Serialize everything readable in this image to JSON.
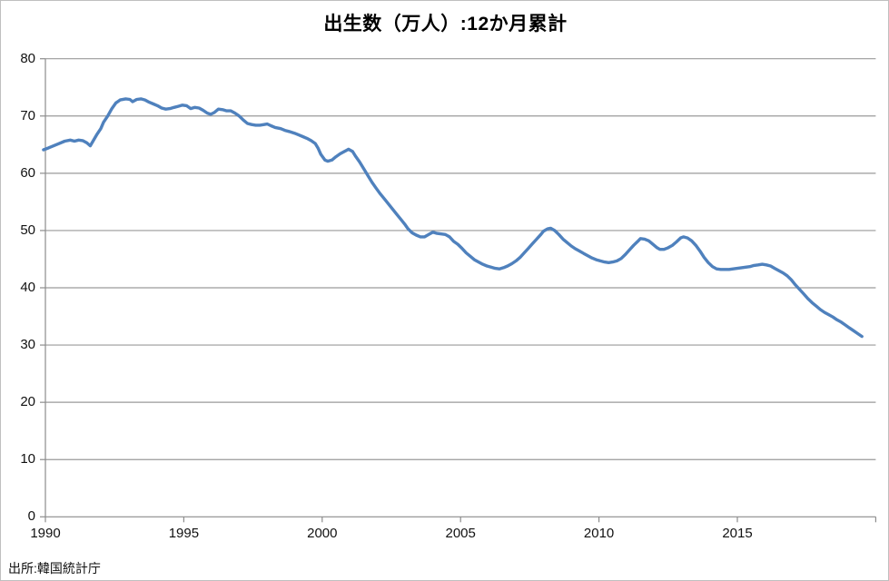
{
  "chart_data": {
    "type": "line",
    "title": "出生数（万人）:12か月累計",
    "source": "出所:韓国統計庁",
    "xlabel": "",
    "ylabel": "",
    "ylim": [
      0,
      80
    ],
    "y_ticks": [
      0,
      10,
      20,
      30,
      40,
      50,
      60,
      70,
      80
    ],
    "x_tick_years": [
      1990,
      1995,
      2000,
      2005,
      2010,
      2015,
      2020
    ],
    "x_tick_labels": [
      "1990",
      "1995",
      "2000",
      "2005",
      "2010",
      "2015",
      ""
    ],
    "x_range": [
      1989.93,
      2020.05
    ],
    "grid": "horizontal",
    "legend": "none",
    "line_color": "#4F81BD",
    "gridline_color": "#9a9a9a",
    "axis_color": "#8c8c8c",
    "points": [
      [
        1989.93,
        64.1
      ],
      [
        1990.1,
        64.4
      ],
      [
        1990.3,
        64.8
      ],
      [
        1990.5,
        65.2
      ],
      [
        1990.7,
        65.6
      ],
      [
        1990.9,
        65.8
      ],
      [
        1991.05,
        65.6
      ],
      [
        1991.2,
        65.8
      ],
      [
        1991.35,
        65.7
      ],
      [
        1991.5,
        65.3
      ],
      [
        1991.62,
        64.8
      ],
      [
        1991.72,
        65.6
      ],
      [
        1991.85,
        66.7
      ],
      [
        1992.0,
        67.8
      ],
      [
        1992.1,
        68.9
      ],
      [
        1992.25,
        70.0
      ],
      [
        1992.4,
        71.3
      ],
      [
        1992.55,
        72.3
      ],
      [
        1992.7,
        72.8
      ],
      [
        1992.9,
        73.0
      ],
      [
        1993.05,
        72.9
      ],
      [
        1993.15,
        72.5
      ],
      [
        1993.3,
        72.9
      ],
      [
        1993.45,
        73.0
      ],
      [
        1993.6,
        72.8
      ],
      [
        1993.75,
        72.4
      ],
      [
        1993.9,
        72.1
      ],
      [
        1994.05,
        71.8
      ],
      [
        1994.2,
        71.4
      ],
      [
        1994.35,
        71.2
      ],
      [
        1994.5,
        71.3
      ],
      [
        1994.65,
        71.5
      ],
      [
        1994.8,
        71.7
      ],
      [
        1994.95,
        71.9
      ],
      [
        1995.1,
        71.8
      ],
      [
        1995.25,
        71.3
      ],
      [
        1995.4,
        71.5
      ],
      [
        1995.55,
        71.4
      ],
      [
        1995.7,
        71.0
      ],
      [
        1995.85,
        70.5
      ],
      [
        1995.97,
        70.3
      ],
      [
        1996.1,
        70.6
      ],
      [
        1996.25,
        71.2
      ],
      [
        1996.4,
        71.1
      ],
      [
        1996.55,
        70.9
      ],
      [
        1996.7,
        70.9
      ],
      [
        1996.85,
        70.5
      ],
      [
        1997.0,
        70.0
      ],
      [
        1997.15,
        69.3
      ],
      [
        1997.3,
        68.7
      ],
      [
        1997.45,
        68.5
      ],
      [
        1997.6,
        68.4
      ],
      [
        1997.75,
        68.4
      ],
      [
        1997.9,
        68.5
      ],
      [
        1998.02,
        68.6
      ],
      [
        1998.15,
        68.3
      ],
      [
        1998.3,
        68.0
      ],
      [
        1998.5,
        67.8
      ],
      [
        1998.65,
        67.5
      ],
      [
        1998.8,
        67.3
      ],
      [
        1999.0,
        67.0
      ],
      [
        1999.15,
        66.7
      ],
      [
        1999.3,
        66.4
      ],
      [
        1999.45,
        66.1
      ],
      [
        1999.6,
        65.7
      ],
      [
        1999.75,
        65.2
      ],
      [
        1999.85,
        64.4
      ],
      [
        1999.95,
        63.3
      ],
      [
        2000.1,
        62.3
      ],
      [
        2000.2,
        62.1
      ],
      [
        2000.35,
        62.3
      ],
      [
        2000.5,
        62.9
      ],
      [
        2000.65,
        63.4
      ],
      [
        2000.8,
        63.8
      ],
      [
        2000.95,
        64.2
      ],
      [
        2001.1,
        63.8
      ],
      [
        2001.2,
        63.0
      ],
      [
        2001.35,
        62.0
      ],
      [
        2001.5,
        60.8
      ],
      [
        2001.65,
        59.6
      ],
      [
        2001.8,
        58.4
      ],
      [
        2001.95,
        57.4
      ],
      [
        2002.1,
        56.4
      ],
      [
        2002.25,
        55.5
      ],
      [
        2002.4,
        54.6
      ],
      [
        2002.55,
        53.7
      ],
      [
        2002.7,
        52.8
      ],
      [
        2002.85,
        51.9
      ],
      [
        2003.0,
        51.0
      ],
      [
        2003.1,
        50.3
      ],
      [
        2003.25,
        49.6
      ],
      [
        2003.4,
        49.2
      ],
      [
        2003.55,
        48.9
      ],
      [
        2003.7,
        48.9
      ],
      [
        2003.85,
        49.3
      ],
      [
        2004.0,
        49.7
      ],
      [
        2004.15,
        49.5
      ],
      [
        2004.3,
        49.4
      ],
      [
        2004.45,
        49.3
      ],
      [
        2004.6,
        48.9
      ],
      [
        2004.75,
        48.1
      ],
      [
        2004.9,
        47.6
      ],
      [
        2005.05,
        46.9
      ],
      [
        2005.2,
        46.1
      ],
      [
        2005.35,
        45.5
      ],
      [
        2005.5,
        44.9
      ],
      [
        2005.65,
        44.5
      ],
      [
        2005.8,
        44.1
      ],
      [
        2005.95,
        43.8
      ],
      [
        2006.1,
        43.6
      ],
      [
        2006.25,
        43.4
      ],
      [
        2006.4,
        43.3
      ],
      [
        2006.55,
        43.5
      ],
      [
        2006.7,
        43.8
      ],
      [
        2006.85,
        44.2
      ],
      [
        2007.0,
        44.7
      ],
      [
        2007.15,
        45.3
      ],
      [
        2007.3,
        46.1
      ],
      [
        2007.45,
        46.9
      ],
      [
        2007.6,
        47.7
      ],
      [
        2007.75,
        48.5
      ],
      [
        2007.9,
        49.3
      ],
      [
        2008.0,
        49.9
      ],
      [
        2008.15,
        50.3
      ],
      [
        2008.25,
        50.4
      ],
      [
        2008.4,
        50.0
      ],
      [
        2008.55,
        49.3
      ],
      [
        2008.7,
        48.5
      ],
      [
        2008.85,
        47.9
      ],
      [
        2009.0,
        47.3
      ],
      [
        2009.15,
        46.8
      ],
      [
        2009.3,
        46.4
      ],
      [
        2009.45,
        46.0
      ],
      [
        2009.6,
        45.6
      ],
      [
        2009.75,
        45.2
      ],
      [
        2009.9,
        44.9
      ],
      [
        2010.05,
        44.7
      ],
      [
        2010.2,
        44.5
      ],
      [
        2010.35,
        44.4
      ],
      [
        2010.5,
        44.5
      ],
      [
        2010.65,
        44.7
      ],
      [
        2010.8,
        45.1
      ],
      [
        2010.95,
        45.8
      ],
      [
        2011.1,
        46.6
      ],
      [
        2011.25,
        47.4
      ],
      [
        2011.4,
        48.1
      ],
      [
        2011.5,
        48.6
      ],
      [
        2011.65,
        48.5
      ],
      [
        2011.8,
        48.2
      ],
      [
        2011.95,
        47.6
      ],
      [
        2012.1,
        47.0
      ],
      [
        2012.2,
        46.7
      ],
      [
        2012.35,
        46.7
      ],
      [
        2012.5,
        47.0
      ],
      [
        2012.65,
        47.4
      ],
      [
        2012.8,
        48.0
      ],
      [
        2012.95,
        48.7
      ],
      [
        2013.05,
        48.9
      ],
      [
        2013.2,
        48.7
      ],
      [
        2013.35,
        48.2
      ],
      [
        2013.5,
        47.4
      ],
      [
        2013.65,
        46.4
      ],
      [
        2013.8,
        45.3
      ],
      [
        2013.95,
        44.4
      ],
      [
        2014.1,
        43.7
      ],
      [
        2014.25,
        43.3
      ],
      [
        2014.4,
        43.2
      ],
      [
        2014.55,
        43.2
      ],
      [
        2014.7,
        43.2
      ],
      [
        2014.85,
        43.3
      ],
      [
        2015.0,
        43.4
      ],
      [
        2015.15,
        43.5
      ],
      [
        2015.3,
        43.6
      ],
      [
        2015.45,
        43.7
      ],
      [
        2015.6,
        43.9
      ],
      [
        2015.75,
        44.0
      ],
      [
        2015.9,
        44.1
      ],
      [
        2016.05,
        44.0
      ],
      [
        2016.2,
        43.8
      ],
      [
        2016.35,
        43.4
      ],
      [
        2016.5,
        43.0
      ],
      [
        2016.65,
        42.6
      ],
      [
        2016.8,
        42.1
      ],
      [
        2016.95,
        41.4
      ],
      [
        2017.1,
        40.5
      ],
      [
        2017.25,
        39.7
      ],
      [
        2017.4,
        38.9
      ],
      [
        2017.55,
        38.1
      ],
      [
        2017.7,
        37.4
      ],
      [
        2017.85,
        36.8
      ],
      [
        2018.0,
        36.2
      ],
      [
        2018.15,
        35.7
      ],
      [
        2018.3,
        35.3
      ],
      [
        2018.45,
        34.9
      ],
      [
        2018.6,
        34.4
      ],
      [
        2018.75,
        34.0
      ],
      [
        2018.9,
        33.5
      ],
      [
        2019.05,
        33.0
      ],
      [
        2019.2,
        32.5
      ],
      [
        2019.35,
        32.0
      ],
      [
        2019.5,
        31.5
      ]
    ]
  }
}
